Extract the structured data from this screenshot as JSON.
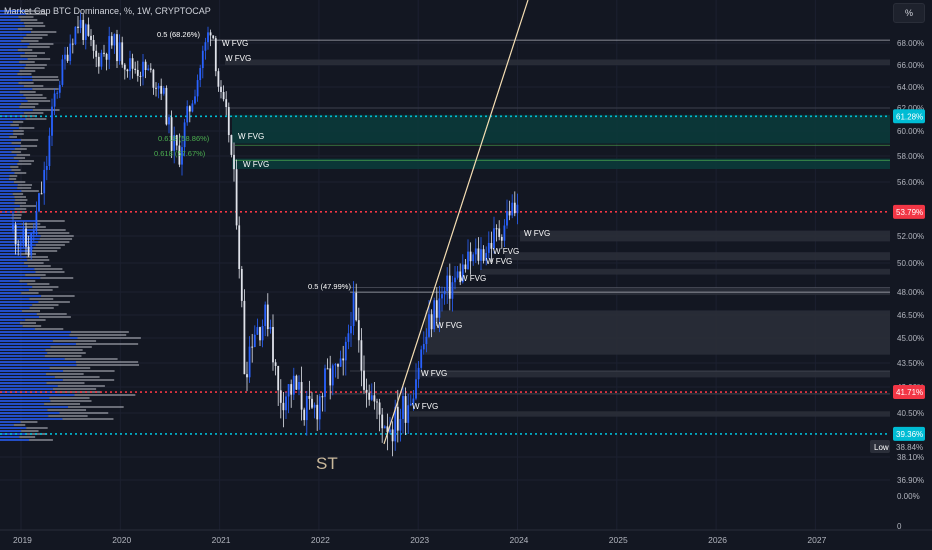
{
  "title": "Market Cap BTC Dominance, %, 1W, CRYPTOCAP",
  "scale_button": "%",
  "annotation_st": "ST",
  "colors": {
    "background": "#131722",
    "candle_up": "#2962ff",
    "candle_down": "#e0e3eb",
    "red_dotted": "#f23645",
    "cyan_dotted": "#00bcd4",
    "fvg_zone": "#2a2e39",
    "fvg_zone_teal": "#0b3a3a",
    "trend_line": "#f5deb3",
    "fib_green": "#4caf50"
  },
  "chart_data": {
    "type": "candlestick",
    "x_ticks": [
      "2019",
      "2020",
      "2021",
      "2022",
      "2023",
      "2024",
      "2025",
      "2026",
      "2027"
    ],
    "y_ticks": [
      "68.00%",
      "66.00%",
      "64.00%",
      "62.00%",
      "60.00%",
      "58.00%",
      "56.00%",
      "52.00%",
      "50.00%",
      "48.00%",
      "46.50%",
      "45.00%",
      "43.50%",
      "42.00%",
      "40.50%",
      "38.10%",
      "36.90%",
      "0.00%",
      "0"
    ],
    "price_badges": [
      {
        "label": "61.28%",
        "value": 61.28,
        "color": "cyan"
      },
      {
        "label": "53.79%",
        "value": 53.79,
        "color": "red"
      },
      {
        "label": "41.71%",
        "value": 41.71,
        "color": "red"
      },
      {
        "label": "39.36%",
        "value": 39.36,
        "color": "cyan"
      }
    ],
    "low_label": {
      "tag": "Low",
      "value": "38.84%"
    },
    "horizontal_levels": [
      {
        "value": 61.28,
        "style": "cyan-dotted"
      },
      {
        "value": 53.79,
        "style": "red-dotted"
      },
      {
        "value": 41.71,
        "style": "red-dotted"
      },
      {
        "value": 39.36,
        "style": "cyan-dotted"
      }
    ],
    "fib_levels": [
      {
        "label": "0.5 (68.26%)",
        "value": 68.26
      },
      {
        "label": "0.618 (58.86%)",
        "value": 58.86
      },
      {
        "label": "0.618 (57.67%)",
        "value": 57.67
      },
      {
        "label": "0.5 (47.99%)",
        "value": 47.99
      }
    ],
    "fvg_labels": [
      "W FVG",
      "W FVG",
      "W FVG",
      "W FVG",
      "W FVG",
      "W FVG",
      "W FVG",
      "W FVG",
      "W FVG",
      "W FVG",
      "W FVG"
    ],
    "fvg_zones": [
      {
        "low": 66.0,
        "high": 66.5
      },
      {
        "low": 60.0,
        "high": 61.4
      },
      {
        "low": 59.0,
        "high": 60.0
      },
      {
        "low": 57.0,
        "high": 57.8
      },
      {
        "low": 51.6,
        "high": 52.4
      },
      {
        "low": 50.2,
        "high": 50.8
      },
      {
        "low": 49.2,
        "high": 49.6
      },
      {
        "low": 47.8,
        "high": 48.3
      },
      {
        "low": 44.0,
        "high": 46.8
      },
      {
        "low": 42.6,
        "high": 43.0
      },
      {
        "low": 40.3,
        "high": 40.6
      }
    ],
    "btc_dominance_series": [
      {
        "date": "2019-01",
        "value": 52.5
      },
      {
        "date": "2019-03",
        "value": 51.0
      },
      {
        "date": "2019-05",
        "value": 57.0
      },
      {
        "date": "2019-06",
        "value": 63.0
      },
      {
        "date": "2019-08",
        "value": 68.5
      },
      {
        "date": "2019-09",
        "value": 70.0
      },
      {
        "date": "2019-11",
        "value": 66.5
      },
      {
        "date": "2020-01",
        "value": 68.0
      },
      {
        "date": "2020-03",
        "value": 66.0
      },
      {
        "date": "2020-05",
        "value": 65.5
      },
      {
        "date": "2020-07",
        "value": 64.0
      },
      {
        "date": "2020-08",
        "value": 59.5
      },
      {
        "date": "2020-09",
        "value": 58.0
      },
      {
        "date": "2020-11",
        "value": 64.0
      },
      {
        "date": "2021-01",
        "value": 70.0
      },
      {
        "date": "2021-02",
        "value": 63.0
      },
      {
        "date": "2021-03",
        "value": 60.5
      },
      {
        "date": "2021-04",
        "value": 54.0
      },
      {
        "date": "2021-05",
        "value": 43.0
      },
      {
        "date": "2021-06",
        "value": 45.5
      },
      {
        "date": "2021-08",
        "value": 46.5
      },
      {
        "date": "2021-09",
        "value": 41.5
      },
      {
        "date": "2021-11",
        "value": 42.0
      },
      {
        "date": "2022-01",
        "value": 40.2
      },
      {
        "date": "2022-03",
        "value": 42.5
      },
      {
        "date": "2022-05",
        "value": 43.0
      },
      {
        "date": "2022-06",
        "value": 47.5
      },
      {
        "date": "2022-07",
        "value": 43.5
      },
      {
        "date": "2022-09",
        "value": 40.5
      },
      {
        "date": "2022-11",
        "value": 39.8
      },
      {
        "date": "2023-01",
        "value": 41.5
      },
      {
        "date": "2023-02",
        "value": 43.5
      },
      {
        "date": "2023-04",
        "value": 47.0
      },
      {
        "date": "2023-06",
        "value": 48.5
      },
      {
        "date": "2023-08",
        "value": 50.0
      },
      {
        "date": "2023-10",
        "value": 51.0
      },
      {
        "date": "2023-12",
        "value": 52.5
      },
      {
        "date": "2024-01",
        "value": 54.0
      },
      {
        "date": "2024-02",
        "value": 53.8
      }
    ]
  }
}
